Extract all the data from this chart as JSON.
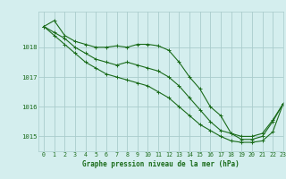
{
  "background_color": "#d4eeee",
  "grid_color": "#aacccc",
  "line_color": "#1a6b1a",
  "text_color": "#1a6b1a",
  "xlabel": "Graphe pression niveau de la mer (hPa)",
  "xlim": [
    -0.5,
    23
  ],
  "ylim": [
    1014.5,
    1019.2
  ],
  "yticks": [
    1015,
    1016,
    1017,
    1018
  ],
  "xticks": [
    0,
    1,
    2,
    3,
    4,
    5,
    6,
    7,
    8,
    9,
    10,
    11,
    12,
    13,
    14,
    15,
    16,
    17,
    18,
    19,
    20,
    21,
    22,
    23
  ],
  "series": [
    {
      "x": [
        0,
        1,
        2,
        3,
        4,
        5,
        6,
        7,
        8,
        9,
        10,
        11,
        12,
        13,
        14,
        15,
        16,
        17,
        18,
        19,
        20,
        21,
        22,
        23
      ],
      "y": [
        1018.7,
        1018.9,
        1018.4,
        1018.2,
        1018.1,
        1018.0,
        1018.0,
        1018.05,
        1018.0,
        1018.1,
        1018.1,
        1018.05,
        1017.9,
        1017.5,
        1017.0,
        1016.6,
        1016.0,
        1015.7,
        1015.1,
        1014.9,
        1014.9,
        1015.0,
        1015.5,
        1016.1
      ]
    },
    {
      "x": [
        0,
        1,
        2,
        3,
        4,
        5,
        6,
        7,
        8,
        9,
        10,
        11,
        12,
        13,
        14,
        15,
        16,
        17,
        18,
        19,
        20,
        21,
        22,
        23
      ],
      "y": [
        1018.7,
        1018.5,
        1018.3,
        1018.0,
        1017.8,
        1017.6,
        1017.5,
        1017.4,
        1017.5,
        1017.4,
        1017.3,
        1017.2,
        1017.0,
        1016.7,
        1016.3,
        1015.9,
        1015.5,
        1015.2,
        1015.1,
        1015.0,
        1015.0,
        1015.1,
        1015.55,
        1016.1
      ]
    },
    {
      "x": [
        0,
        1,
        2,
        3,
        4,
        5,
        6,
        7,
        8,
        9,
        10,
        11,
        12,
        13,
        14,
        15,
        16,
        17,
        18,
        19,
        20,
        21,
        22,
        23
      ],
      "y": [
        1018.7,
        1018.4,
        1018.1,
        1017.8,
        1017.5,
        1017.3,
        1017.1,
        1017.0,
        1016.9,
        1016.8,
        1016.7,
        1016.5,
        1016.3,
        1016.0,
        1015.7,
        1015.4,
        1015.2,
        1015.0,
        1014.85,
        1014.8,
        1014.8,
        1014.85,
        1015.15,
        1016.1
      ]
    }
  ]
}
